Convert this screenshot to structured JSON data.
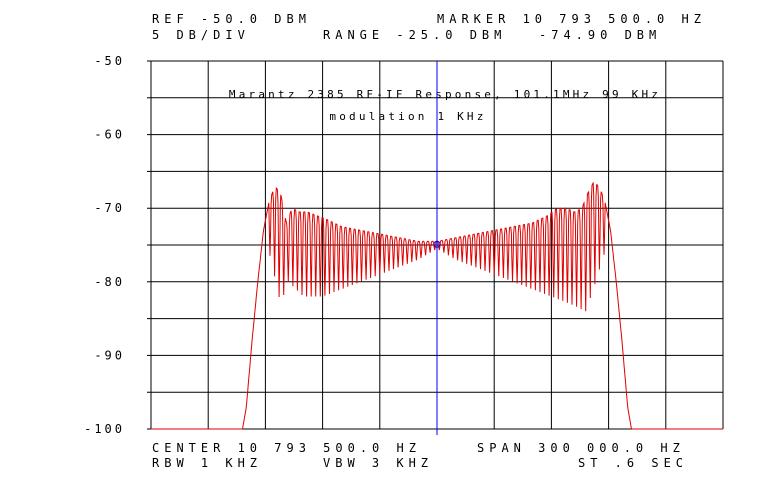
{
  "header": {
    "ref": "REF -50.0 DBM",
    "marker": "MARKER 10 793 500.0 HZ",
    "scale": "5 DB/DIV",
    "range": "RANGE -25.0 DBM",
    "marker_level": "-74.90 DBM"
  },
  "footer": {
    "center": "CENTER 10 793 500.0 HZ",
    "span": "SPAN 300 000.0 HZ",
    "rbw": "RBW 1 KHZ",
    "vbw": "VBW 3 KHZ",
    "sweep": "ST .6 SEC"
  },
  "chart_data": {
    "type": "line",
    "title": "Marantz 2385 RF-IF Response, 101.1MHz 99 KHz",
    "subtitle": "modulation 1 KHz",
    "xlabel": "",
    "ylabel": "",
    "x_unit": "Hz offset from center",
    "xlim": [
      -150000,
      150000
    ],
    "ylim": [
      -100,
      -50
    ],
    "y_ticks": [
      "-50",
      "-60",
      "-70",
      "-80",
      "-90",
      "-100"
    ],
    "y_tick_values": [
      -50,
      -60,
      -70,
      -80,
      -90,
      -100
    ],
    "grid": true,
    "trace_color": "#e00000",
    "marker_color": "#0000ff",
    "marker": {
      "x": 0,
      "y": -74.9
    },
    "series": [
      {
        "envelope_top": [
          [
            -102000,
            -100
          ],
          [
            -100000,
            -97
          ],
          [
            -97000,
            -88
          ],
          [
            -94000,
            -80
          ],
          [
            -91000,
            -73
          ],
          [
            -88000,
            -69
          ],
          [
            -85000,
            -67
          ],
          [
            -82000,
            -68
          ],
          [
            -79000,
            -72
          ],
          [
            -76000,
            -70
          ],
          [
            -72000,
            -70.5
          ],
          [
            -68000,
            -70.5
          ],
          [
            -63000,
            -71
          ],
          [
            -58000,
            -71.5
          ],
          [
            -50000,
            -72.5
          ],
          [
            -40000,
            -73
          ],
          [
            -30000,
            -73.5
          ],
          [
            -20000,
            -74
          ],
          [
            -10000,
            -74.5
          ],
          [
            0,
            -74.5
          ],
          [
            10000,
            -74
          ],
          [
            20000,
            -73.5
          ],
          [
            30000,
            -73
          ],
          [
            40000,
            -72.5
          ],
          [
            50000,
            -72
          ],
          [
            58000,
            -71
          ],
          [
            63000,
            -70
          ],
          [
            68000,
            -70
          ],
          [
            72000,
            -70.5
          ],
          [
            76000,
            -70
          ],
          [
            79000,
            -68
          ],
          [
            82000,
            -66.5
          ],
          [
            85000,
            -67
          ],
          [
            88000,
            -69
          ],
          [
            91000,
            -73
          ],
          [
            94000,
            -80
          ],
          [
            97000,
            -88
          ],
          [
            100000,
            -97
          ],
          [
            102000,
            -100
          ]
        ],
        "envelope_bottom": [
          [
            -88000,
            -76
          ],
          [
            -82000,
            -83
          ],
          [
            -78000,
            -80
          ],
          [
            -70000,
            -82
          ],
          [
            -60000,
            -82
          ],
          [
            -50000,
            -81
          ],
          [
            -40000,
            -80
          ],
          [
            -30000,
            -79
          ],
          [
            -20000,
            -78
          ],
          [
            -10000,
            -77
          ],
          [
            0,
            -75.5
          ],
          [
            10000,
            -77
          ],
          [
            20000,
            -78
          ],
          [
            30000,
            -79
          ],
          [
            40000,
            -80
          ],
          [
            50000,
            -81
          ],
          [
            60000,
            -82
          ],
          [
            70000,
            -83
          ],
          [
            78000,
            -84
          ],
          [
            82000,
            -81
          ],
          [
            88000,
            -76
          ]
        ],
        "ripple_period_hz": 2400
      }
    ]
  }
}
